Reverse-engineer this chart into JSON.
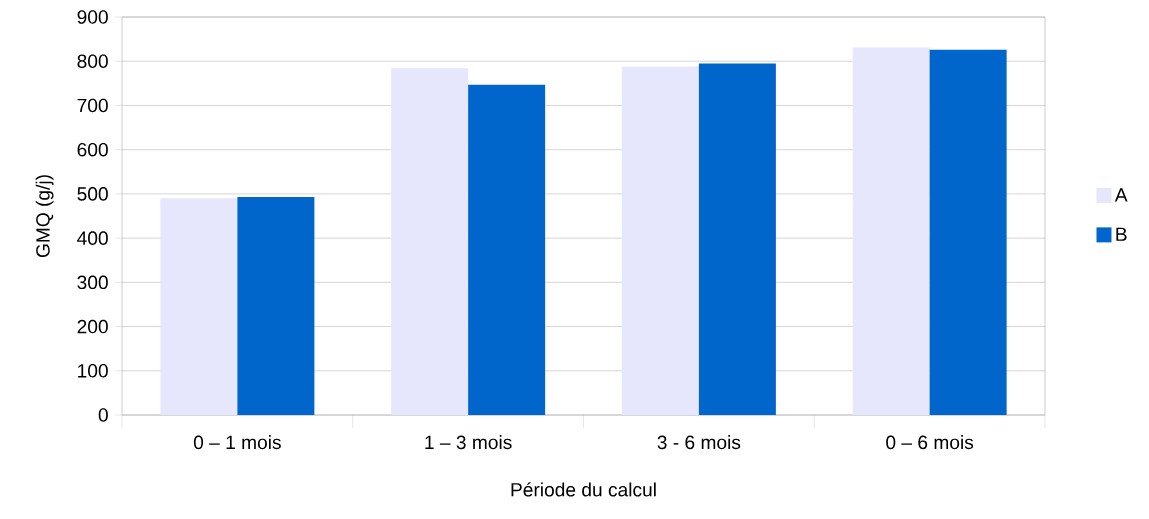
{
  "chart_data": {
    "type": "bar",
    "xlabel": "Période du calcul",
    "ylabel": "GMQ (g/j)",
    "categories": [
      "0 – 1 mois",
      "1 – 3 mois",
      "3 - 6 mois",
      "0 – 6 mois"
    ],
    "series": [
      {
        "name": "A",
        "color": "#e6e6fc",
        "values": [
          490,
          784,
          788,
          831
        ]
      },
      {
        "name": "B",
        "color": "#0066cc",
        "values": [
          493,
          747,
          795,
          826
        ]
      }
    ],
    "ylim": [
      0,
      900
    ],
    "yticks": [
      0,
      100,
      200,
      300,
      400,
      500,
      600,
      700,
      800,
      900
    ],
    "grid": "y",
    "legend": "right"
  }
}
